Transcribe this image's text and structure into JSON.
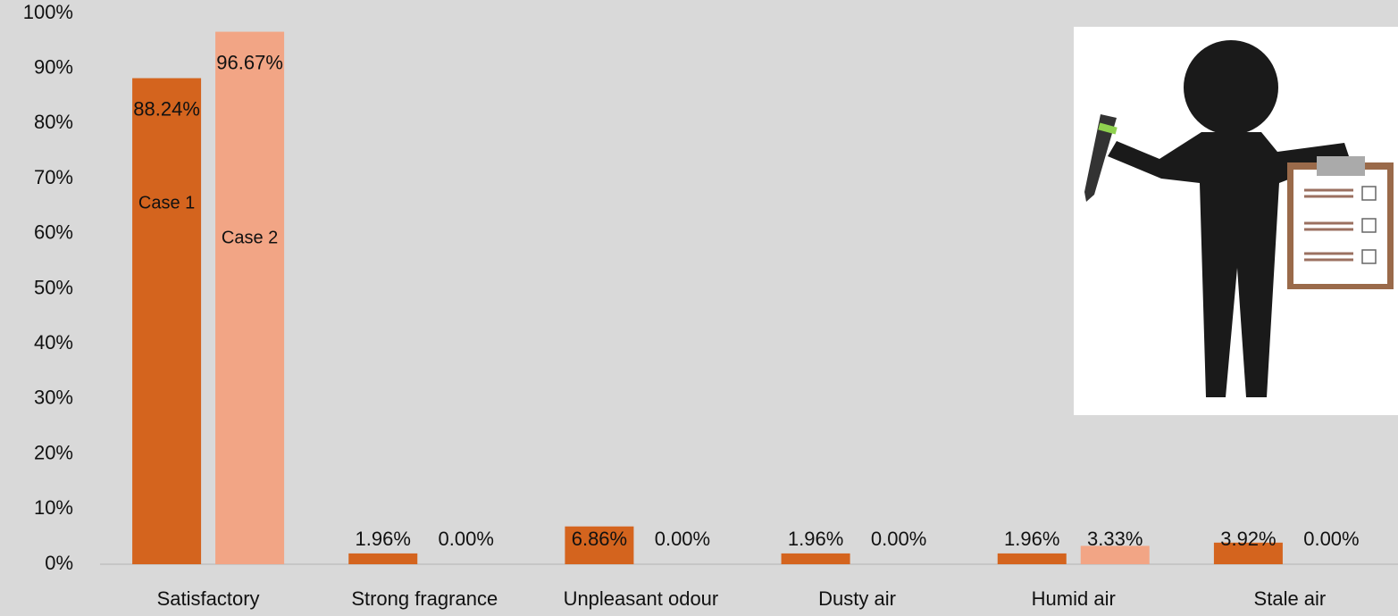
{
  "chart_data": {
    "type": "bar",
    "categories": [
      "Satisfactory",
      "Strong fragrance",
      "Unpleasant odour",
      "Dusty air",
      "Humid air",
      "Stale air"
    ],
    "series": [
      {
        "name": "Case 1",
        "color": "#d4641e",
        "values": [
          88.24,
          1.96,
          6.86,
          1.96,
          1.96,
          3.92
        ],
        "value_labels": [
          "88.24%",
          "1.96%",
          "6.86%",
          "1.96%",
          "1.96%",
          "3.92%"
        ]
      },
      {
        "name": "Case 2",
        "color": "#f2a585",
        "values": [
          96.67,
          0,
          0,
          0,
          3.33,
          0
        ],
        "value_labels": [
          "96.67%",
          "0.00%",
          "0.00%",
          "0.00%",
          "3.33%",
          "0.00%"
        ]
      }
    ],
    "ylim": [
      0,
      100
    ],
    "yticks": [
      {
        "value": 0,
        "label": "0%"
      },
      {
        "value": 10,
        "label": "10%"
      },
      {
        "value": 20,
        "label": "20%"
      },
      {
        "value": 30,
        "label": "30%"
      },
      {
        "value": 40,
        "label": "40%"
      },
      {
        "value": 50,
        "label": "50%"
      },
      {
        "value": 60,
        "label": "60%"
      },
      {
        "value": 70,
        "label": "70%"
      },
      {
        "value": 80,
        "label": "80%"
      },
      {
        "value": 90,
        "label": "90%"
      },
      {
        "value": 100,
        "label": "100%"
      }
    ],
    "grid": false
  }
}
